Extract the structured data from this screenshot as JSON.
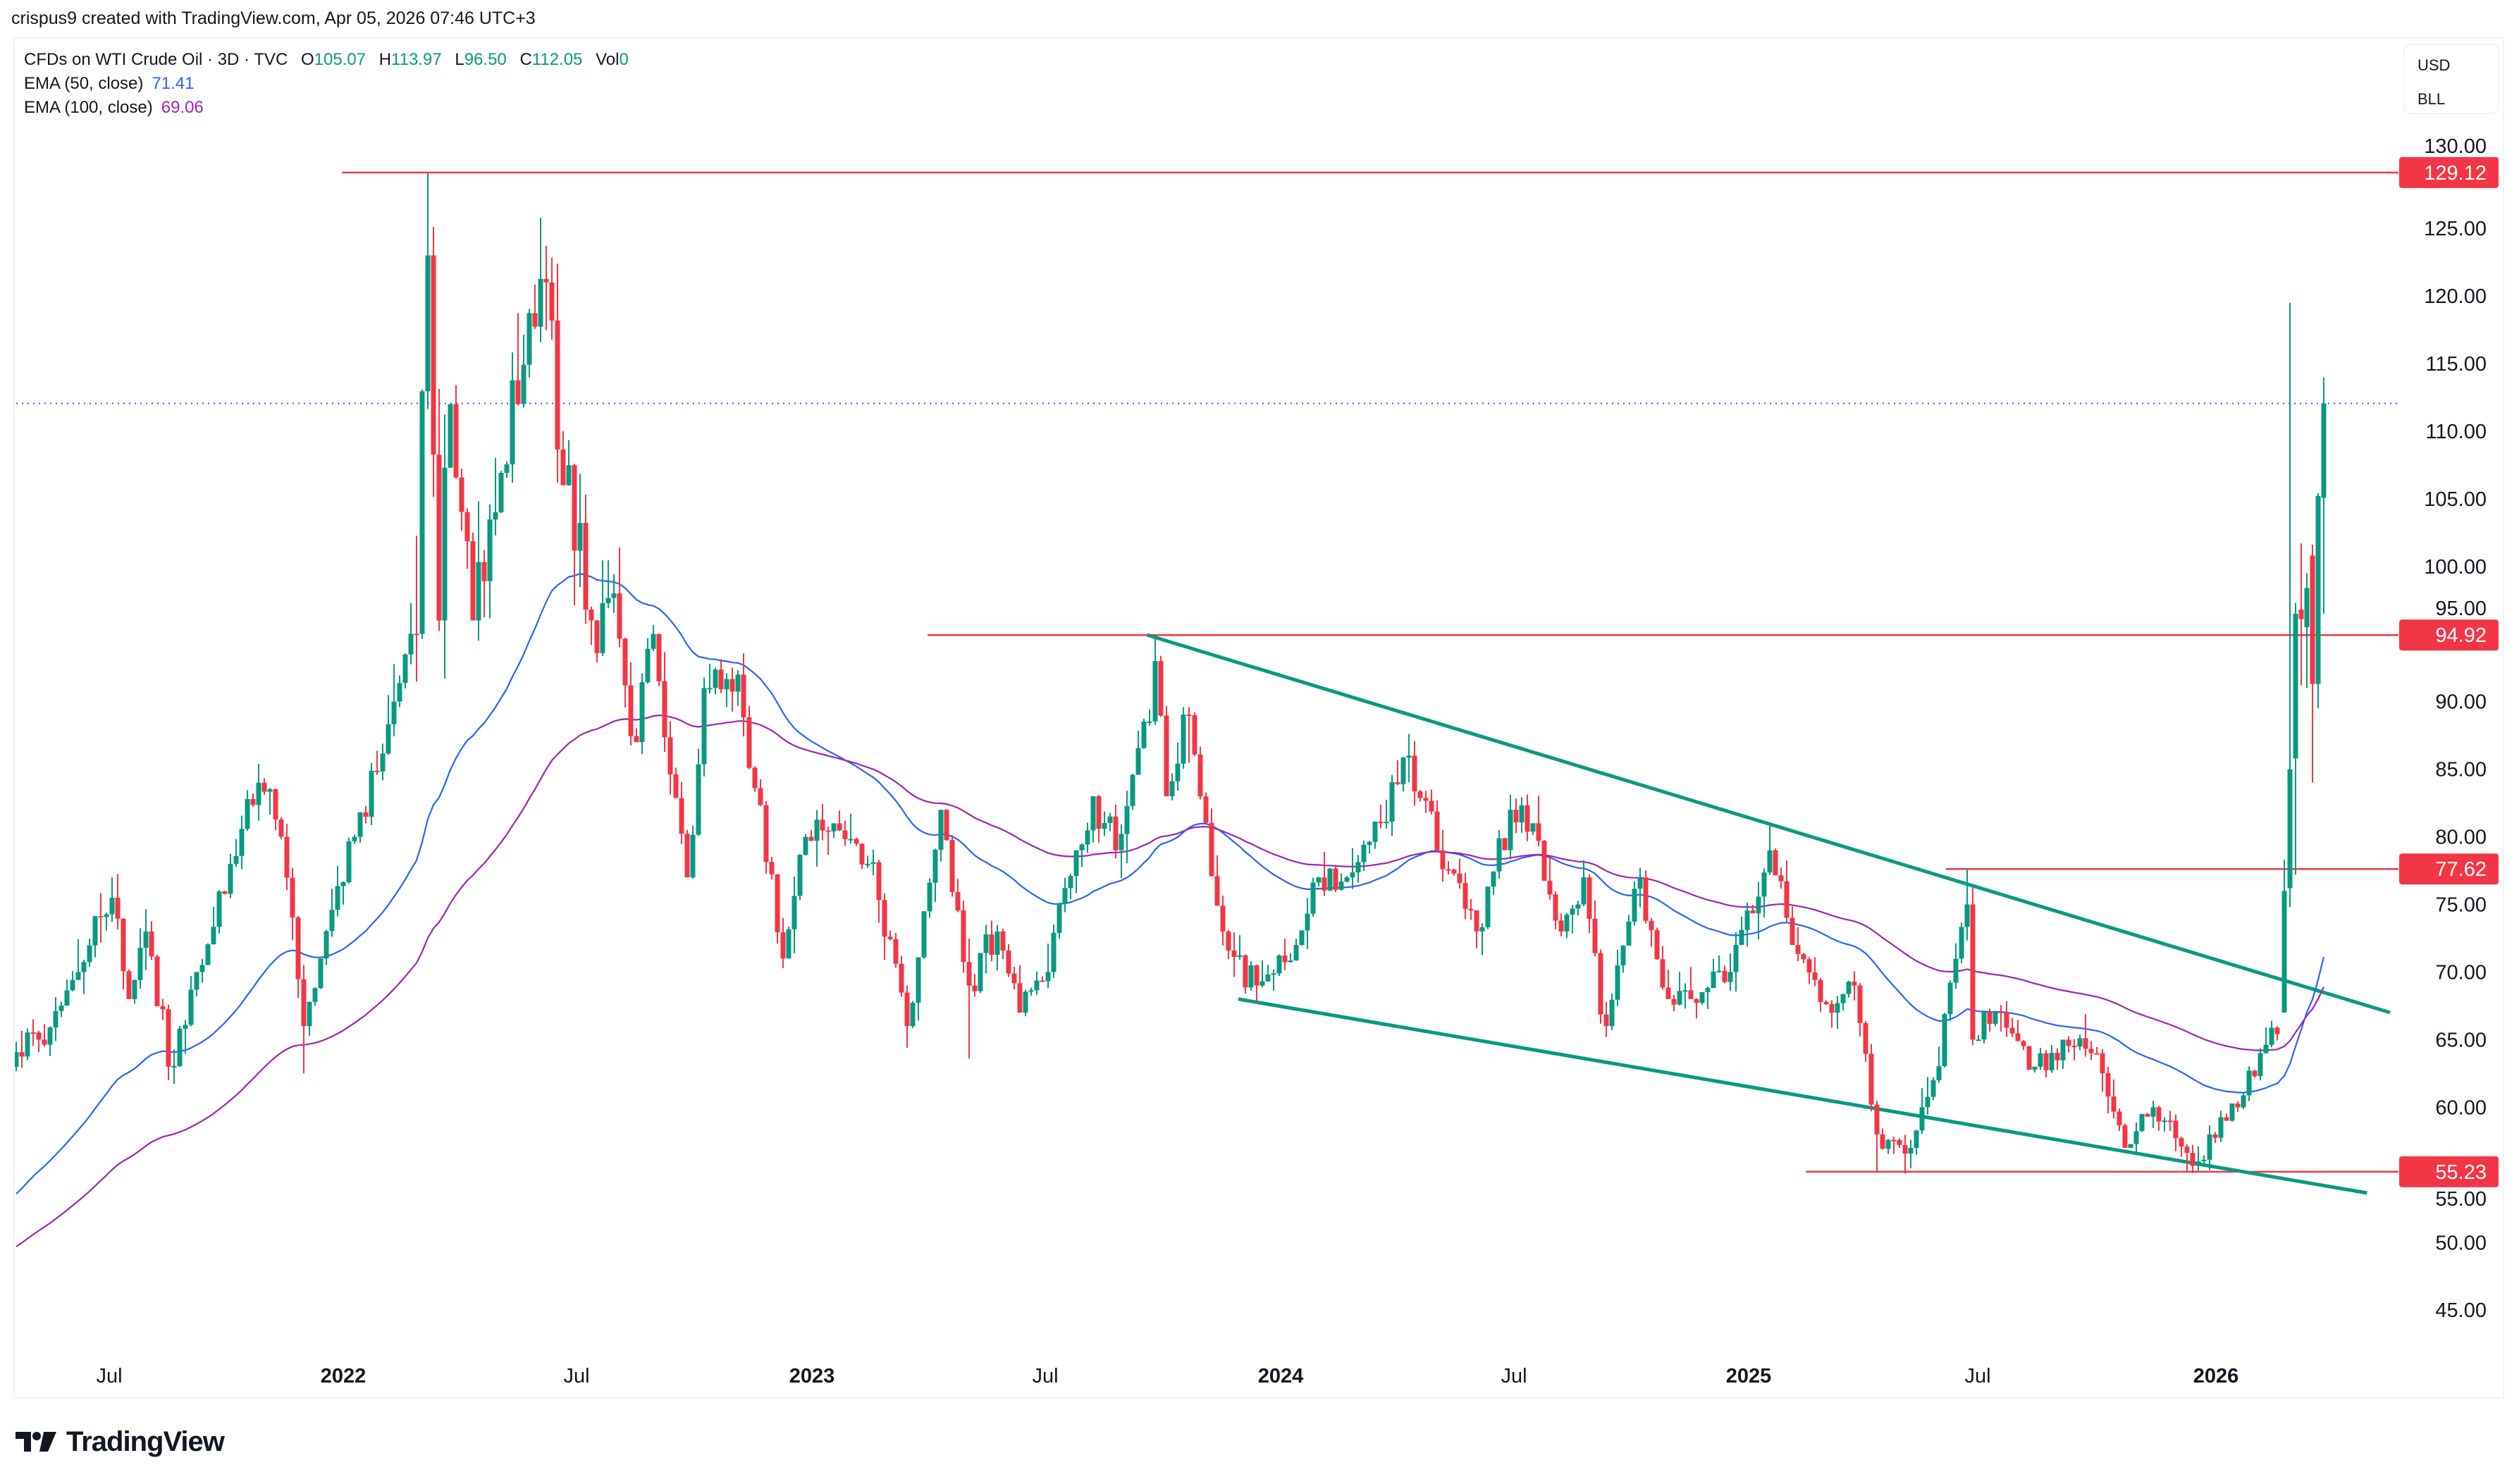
{
  "header": {
    "attribution": "crispus9 created with TradingView.com, Apr 05, 2026 07:46 UTC+3"
  },
  "legend": {
    "symbol": "CFDs on WTI Crude Oil · 3D · TVC",
    "o_label": "O",
    "o": "105.07",
    "h_label": "H",
    "h": "113.97",
    "l_label": "L",
    "l": "96.50",
    "c_label": "C",
    "c": "112.05",
    "vol_label": "Vol",
    "vol": "0",
    "ema50_label": "EMA (50, close)",
    "ema50": "71.41",
    "ema100_label": "EMA (100, close)",
    "ema100": "69.06"
  },
  "axis_unit": {
    "currency": "USD",
    "unit": "BLL"
  },
  "branding": {
    "name": "TradingView"
  },
  "colors": {
    "up": "#089981",
    "down": "#F23645",
    "ema50": "#2962FF",
    "ema100": "#9C27B0",
    "level": "#F23645",
    "trendline": "#089981",
    "current_price_line": "#2962FF"
  },
  "chart_data": {
    "type": "candlestick",
    "interval": "3D",
    "y_ticks": [
      "45.00",
      "50.00",
      "55.00",
      "60.00",
      "65.00",
      "70.00",
      "75.00",
      "80.00",
      "85.00",
      "90.00",
      "95.00",
      "100.00",
      "105.00",
      "110.00",
      "115.00",
      "120.00",
      "125.00",
      "130.00"
    ],
    "x_ticks": [
      {
        "label": "Jul",
        "major": false
      },
      {
        "label": "2022",
        "major": true
      },
      {
        "label": "Jul",
        "major": false
      },
      {
        "label": "2023",
        "major": true
      },
      {
        "label": "Jul",
        "major": false
      },
      {
        "label": "2024",
        "major": true
      },
      {
        "label": "Jul",
        "major": false
      },
      {
        "label": "2025",
        "major": true
      },
      {
        "label": "Jul",
        "major": false
      },
      {
        "label": "2026",
        "major": true
      }
    ],
    "grid": false,
    "current_price": 112.05,
    "levels": [
      {
        "price": 129.12,
        "label": "129.12",
        "from": "2021-12-31"
      },
      {
        "price": 94.92,
        "label": "94.92",
        "from": "2023-04-01"
      },
      {
        "price": 77.62,
        "label": "77.62",
        "from": "2025-06-03"
      },
      {
        "price": 55.23,
        "label": "55.23",
        "from": "2025-02-14"
      }
    ],
    "trendlines": [
      {
        "name": "upper",
        "start": {
          "date": "2023-09-19",
          "price": 94.93
        },
        "end": {
          "date": "2026-05-15",
          "price": 67.0
        }
      },
      {
        "name": "lower",
        "start": {
          "date": "2023-11-29",
          "price": 68.0
        },
        "end": {
          "date": "2026-04-27",
          "price": 53.66
        }
      }
    ],
    "ema": [
      {
        "period": 50,
        "start_value": 53.6,
        "last_value": 71.41
      },
      {
        "period": 100,
        "start_value": 49.7,
        "last_value": 69.06
      }
    ],
    "price_path": [
      {
        "date": "2021-04-12",
        "close": 63
      },
      {
        "date": "2021-05-10",
        "close": 65
      },
      {
        "date": "2021-06-07",
        "close": 70
      },
      {
        "date": "2021-07-06",
        "close": 75.5,
        "high": 77
      },
      {
        "date": "2021-07-20",
        "close": 68
      },
      {
        "date": "2021-08-01",
        "close": 73
      },
      {
        "date": "2021-08-20",
        "close": 63,
        "low": 62
      },
      {
        "date": "2021-09-10",
        "close": 70
      },
      {
        "date": "2021-10-05",
        "close": 78
      },
      {
        "date": "2021-10-26",
        "close": 84,
        "high": 85.4
      },
      {
        "date": "2021-11-15",
        "close": 80
      },
      {
        "date": "2021-12-01",
        "close": 66,
        "low": 62.5
      },
      {
        "date": "2021-12-15",
        "close": 71
      },
      {
        "date": "2022-01-10",
        "close": 80
      },
      {
        "date": "2022-02-10",
        "close": 90
      },
      {
        "date": "2022-02-25",
        "close": 95
      },
      {
        "date": "2022-03-07",
        "close": 123,
        "high": 129.12
      },
      {
        "date": "2022-03-16",
        "close": 96
      },
      {
        "date": "2022-03-24",
        "close": 112
      },
      {
        "date": "2022-04-11",
        "close": 96
      },
      {
        "date": "2022-04-28",
        "close": 104
      },
      {
        "date": "2022-05-15",
        "close": 112
      },
      {
        "date": "2022-06-08",
        "close": 121,
        "high": 123.7
      },
      {
        "date": "2022-06-23",
        "close": 106
      },
      {
        "date": "2022-07-14",
        "close": 96
      },
      {
        "date": "2022-07-29",
        "close": 98
      },
      {
        "date": "2022-08-16",
        "close": 87
      },
      {
        "date": "2022-08-29",
        "close": 95
      },
      {
        "date": "2022-09-26",
        "close": 77
      },
      {
        "date": "2022-10-10",
        "close": 91
      },
      {
        "date": "2022-11-04",
        "close": 92
      },
      {
        "date": "2022-12-09",
        "close": 71,
        "low": 70.3
      },
      {
        "date": "2022-12-28",
        "close": 80
      },
      {
        "date": "2023-01-20",
        "close": 81
      },
      {
        "date": "2023-02-15",
        "close": 78
      },
      {
        "date": "2023-03-17",
        "close": 66,
        "low": 64.4
      },
      {
        "date": "2023-04-12",
        "close": 82
      },
      {
        "date": "2023-05-04",
        "close": 69,
        "low": 63.6
      },
      {
        "date": "2023-05-25",
        "close": 73
      },
      {
        "date": "2023-06-12",
        "close": 67
      },
      {
        "date": "2023-07-03",
        "close": 70
      },
      {
        "date": "2023-07-25",
        "close": 79
      },
      {
        "date": "2023-08-10",
        "close": 83
      },
      {
        "date": "2023-08-25",
        "close": 79
      },
      {
        "date": "2023-09-27",
        "close": 93,
        "high": 94.92
      },
      {
        "date": "2023-10-06",
        "close": 83
      },
      {
        "date": "2023-10-20",
        "close": 89
      },
      {
        "date": "2023-11-16",
        "close": 73
      },
      {
        "date": "2023-12-13",
        "close": 69,
        "low": 67.7
      },
      {
        "date": "2024-01-15",
        "close": 72
      },
      {
        "date": "2024-01-29",
        "close": 77
      },
      {
        "date": "2024-02-20",
        "close": 77
      },
      {
        "date": "2024-03-20",
        "close": 81
      },
      {
        "date": "2024-04-10",
        "close": 86,
        "high": 87.6
      },
      {
        "date": "2024-05-03",
        "close": 79
      },
      {
        "date": "2024-06-04",
        "close": 73
      },
      {
        "date": "2024-06-28",
        "close": 82
      },
      {
        "date": "2024-07-15",
        "close": 81
      },
      {
        "date": "2024-08-05",
        "close": 73
      },
      {
        "date": "2024-08-26",
        "close": 77
      },
      {
        "date": "2024-09-10",
        "close": 66,
        "low": 65.2
      },
      {
        "date": "2024-10-07",
        "close": 77
      },
      {
        "date": "2024-10-28",
        "close": 68
      },
      {
        "date": "2024-11-15",
        "close": 68
      },
      {
        "date": "2024-12-15",
        "close": 70
      },
      {
        "date": "2025-01-15",
        "close": 79,
        "high": 80.8
      },
      {
        "date": "2025-02-05",
        "close": 72
      },
      {
        "date": "2025-03-05",
        "close": 67
      },
      {
        "date": "2025-03-25",
        "close": 69
      },
      {
        "date": "2025-04-09",
        "close": 58,
        "low": 55.23
      },
      {
        "date": "2025-05-05",
        "close": 57,
        "low": 55.5
      },
      {
        "date": "2025-05-25",
        "close": 62
      },
      {
        "date": "2025-06-18",
        "close": 75,
        "high": 77.62
      },
      {
        "date": "2025-06-25",
        "close": 65
      },
      {
        "date": "2025-07-15",
        "close": 67
      },
      {
        "date": "2025-08-10",
        "close": 63
      },
      {
        "date": "2025-09-01",
        "close": 65
      },
      {
        "date": "2025-09-25",
        "close": 64
      },
      {
        "date": "2025-10-20",
        "close": 57
      },
      {
        "date": "2025-11-10",
        "close": 60
      },
      {
        "date": "2025-12-16",
        "close": 56,
        "low": 55.3
      },
      {
        "date": "2026-01-08",
        "close": 59
      },
      {
        "date": "2026-02-05",
        "close": 64
      },
      {
        "date": "2026-02-25",
        "close": 66.5
      }
    ],
    "recent_candles": [
      {
        "open": 67.0,
        "high": 78.3,
        "low": 67.0,
        "close": 76.0
      },
      {
        "open": 76.2,
        "high": 119.5,
        "low": 74.8,
        "close": 85.0
      },
      {
        "open": 85.8,
        "high": 97.3,
        "low": 77.2,
        "close": 96.5
      },
      {
        "open": 96.8,
        "high": 101.7,
        "low": 91.2,
        "close": 96.1
      },
      {
        "open": 95.5,
        "high": 99.5,
        "low": 91.0,
        "close": 98.4
      },
      {
        "open": 100.8,
        "high": 101.6,
        "low": 84.0,
        "close": 91.3
      },
      {
        "open": 91.3,
        "high": 105.4,
        "low": 89.5,
        "close": 105.2
      },
      {
        "open": 105.07,
        "high": 113.97,
        "low": 96.5,
        "close": 112.05
      }
    ]
  }
}
